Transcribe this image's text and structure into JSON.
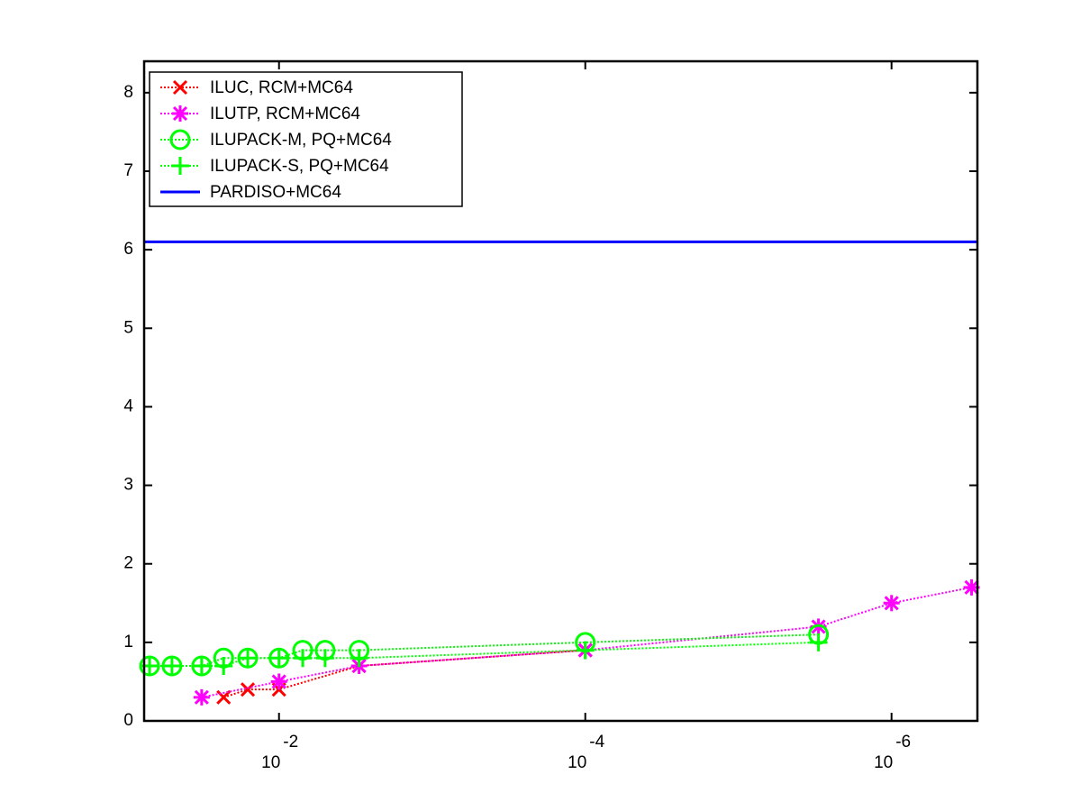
{
  "chart_data": {
    "type": "line",
    "xscale": "log",
    "xlim": [
      0.076,
      2.75e-07
    ],
    "xticks": [
      {
        "value": 0.01,
        "label": "10",
        "exponent": "-2"
      },
      {
        "value": 0.0001,
        "label": "10",
        "exponent": "-4"
      },
      {
        "value": 1e-06,
        "label": "10",
        "exponent": "-6"
      }
    ],
    "ylim": [
      0,
      8.4
    ],
    "yticks": [
      0,
      1,
      2,
      3,
      4,
      5,
      6,
      7,
      8
    ],
    "grid": false,
    "legend": "upper left",
    "series": [
      {
        "name": "ILUC, RCM+MC64",
        "color": "#ff0000",
        "marker": "x",
        "x": [
          0.023,
          0.016,
          0.01,
          0.003,
          0.0001
        ],
        "values": [
          0.3,
          0.4,
          0.4,
          0.7,
          0.9
        ]
      },
      {
        "name": "ILUTP, RCM+MC64",
        "color": "#ff00ff",
        "marker": "*",
        "x": [
          0.032,
          0.01,
          0.003,
          0.0001,
          3e-06,
          1e-06,
          3e-07
        ],
        "values": [
          0.3,
          0.5,
          0.7,
          0.9,
          1.2,
          1.5,
          1.7
        ]
      },
      {
        "name": "ILUPACK-M, PQ+MC64",
        "color": "#00ff00",
        "marker": "o",
        "x": [
          0.07,
          0.05,
          0.032,
          0.023,
          0.016,
          0.01,
          0.007,
          0.005,
          0.003,
          0.0001,
          3e-06
        ],
        "values": [
          0.7,
          0.7,
          0.7,
          0.8,
          0.8,
          0.8,
          0.9,
          0.9,
          0.9,
          1.0,
          1.1
        ]
      },
      {
        "name": "ILUPACK-S, PQ+MC64",
        "color": "#00ff00",
        "marker": "+",
        "x": [
          0.07,
          0.05,
          0.032,
          0.023,
          0.016,
          0.01,
          0.007,
          0.005,
          0.003,
          0.0001,
          3e-06
        ],
        "values": [
          0.7,
          0.7,
          0.7,
          0.7,
          0.8,
          0.8,
          0.8,
          0.8,
          0.8,
          0.9,
          1.0
        ]
      },
      {
        "name": "PARDISO+MC64",
        "color": "#0000ff",
        "marker": "none",
        "hline": 6.1
      }
    ]
  }
}
